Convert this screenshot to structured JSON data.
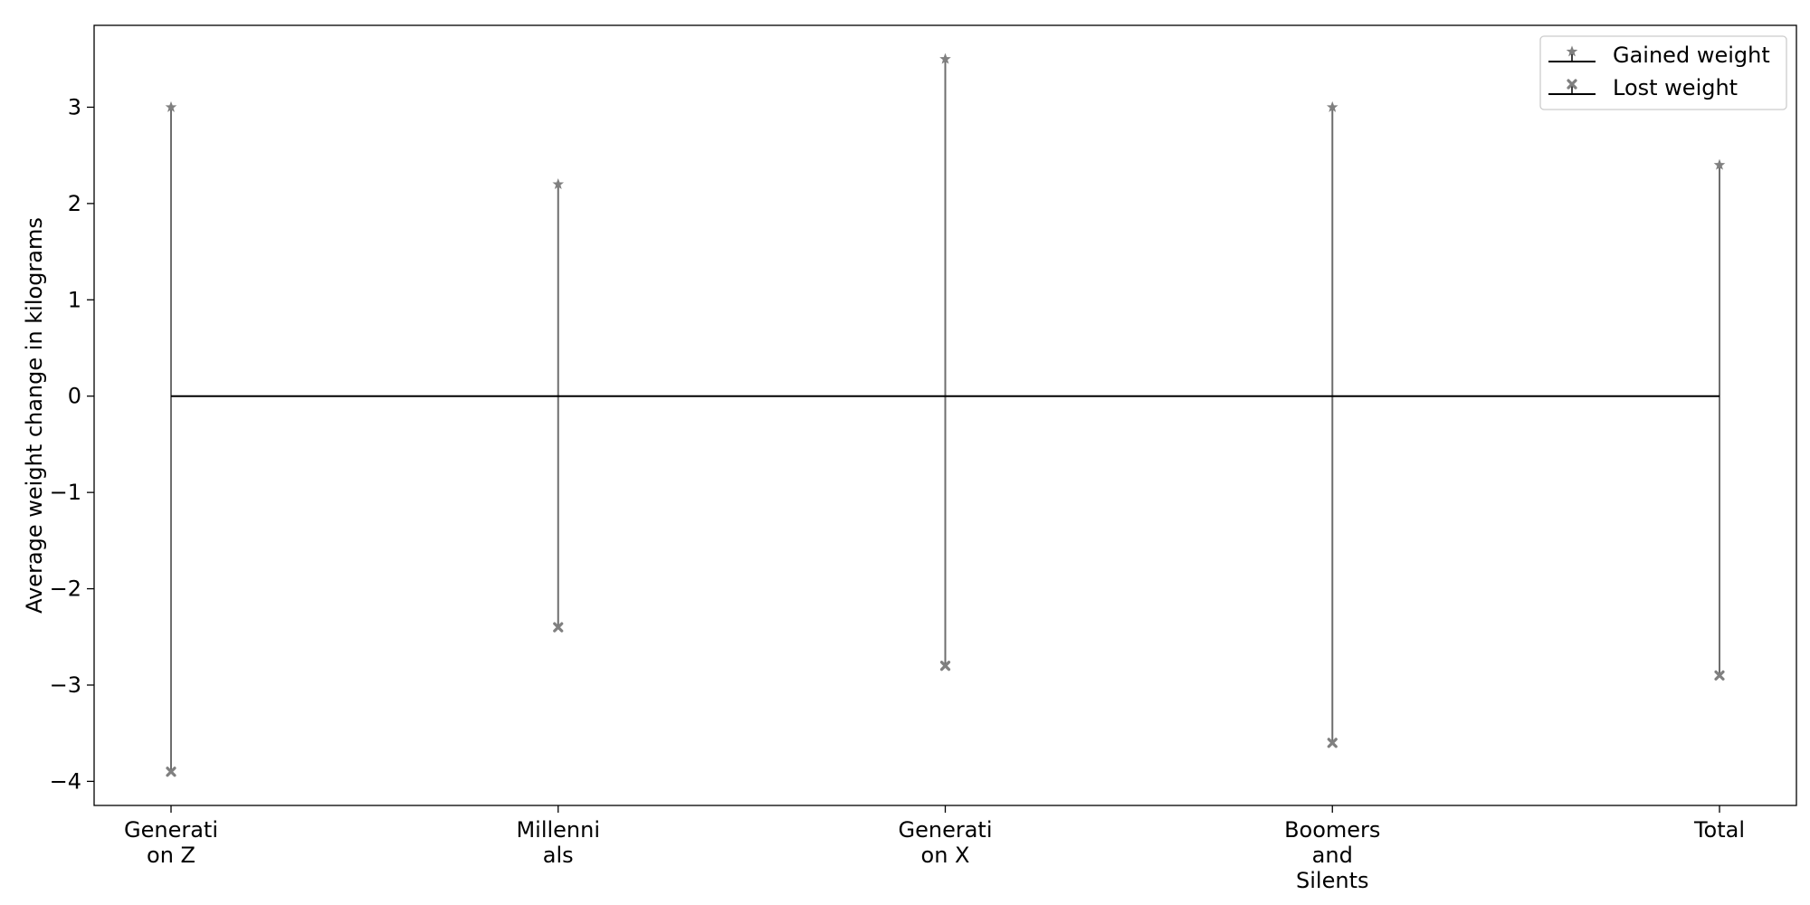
{
  "chart_data": {
    "type": "error-range",
    "categories": [
      "Generation Z",
      "Millennials",
      "Generation X",
      "Boomers and Silents",
      "Total"
    ],
    "category_tick_lines": [
      [
        "Generati",
        "on Z"
      ],
      [
        "Millenni",
        "als"
      ],
      [
        "Generati",
        "on X"
      ],
      [
        "Boomers",
        "and",
        "Silents"
      ],
      [
        "Total"
      ]
    ],
    "series": [
      {
        "name": "Gained weight",
        "marker": "star",
        "values": [
          3.0,
          2.2,
          3.5,
          3.0,
          2.4
        ]
      },
      {
        "name": "Lost weight",
        "marker": "x",
        "values": [
          -3.9,
          -2.4,
          -2.8,
          -3.6,
          -2.9
        ]
      }
    ],
    "title": "",
    "xlabel": "",
    "ylabel": "Average weight change in kilograms",
    "ylim": [
      -4.25,
      3.85
    ],
    "yticks": [
      -4,
      -3,
      -2,
      -1,
      0,
      1,
      2,
      3
    ],
    "ytick_labels": [
      "−4",
      "−3",
      "−2",
      "−1",
      "0",
      "1",
      "2",
      "3"
    ],
    "zero_line": true,
    "grid": false,
    "legend_position": "top-right",
    "colors": {
      "marker": "#808080",
      "line": "#6e6e6e",
      "zero_line": "#000000",
      "frame": "#000000"
    }
  }
}
